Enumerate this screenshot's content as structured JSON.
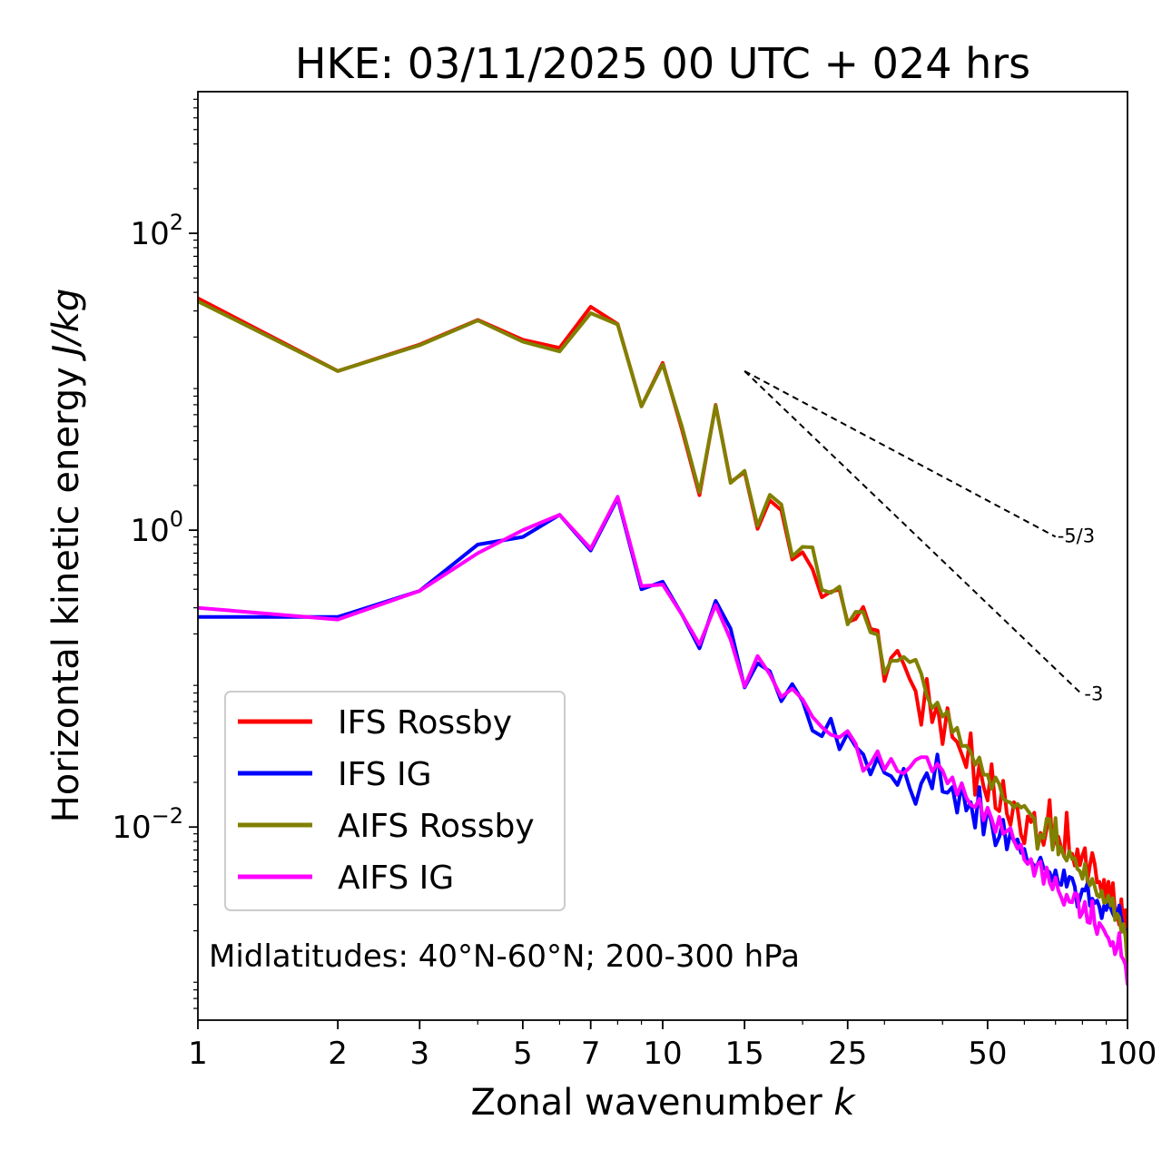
{
  "chart_data": {
    "type": "line",
    "title": "HKE: 03/11/2025 00 UTC + 024 hrs",
    "xlabel": "Zonal wavenumber",
    "xlabel_var": "k",
    "ylabel": "Horizontal kinetic energy",
    "ylabel_unit": "J/kg",
    "xscale": "log",
    "yscale": "log",
    "xlim": [
      1,
      100
    ],
    "ylim": [
      0.0005,
      900
    ],
    "xticks": [
      {
        "value": 1,
        "label": "1"
      },
      {
        "value": 2,
        "label": "2"
      },
      {
        "value": 3,
        "label": "3"
      },
      {
        "value": 5,
        "label": "5"
      },
      {
        "value": 7,
        "label": "7"
      },
      {
        "value": 10,
        "label": "10"
      },
      {
        "value": 15,
        "label": "15"
      },
      {
        "value": 25,
        "label": "25"
      },
      {
        "value": 50,
        "label": "50"
      },
      {
        "value": 100,
        "label": "100"
      }
    ],
    "yticks": [
      {
        "value": 100,
        "base": "10",
        "exp": "2"
      },
      {
        "value": 1,
        "base": "10",
        "exp": "0"
      },
      {
        "value": 0.01,
        "base": "10",
        "exp": "−2"
      }
    ],
    "annotation": "Midlatitudes: 40°N-60°N; 200-300 hPa",
    "legend_position": "lower-left",
    "series": [
      {
        "name": "IFS Rossby",
        "color": "#ff0000",
        "x_start": 1,
        "values": [
          36.5,
          11.8,
          17.8,
          26.1,
          19.2,
          16.9,
          32.0,
          24.5,
          6.83,
          13.4,
          4.77,
          1.72,
          6.98,
          2.11,
          2.46,
          1.02,
          1.59,
          1.36,
          0.634,
          0.71,
          0.547,
          0.353,
          0.385,
          0.398,
          0.24,
          0.252,
          0.304,
          0.216,
          0.211,
          0.0964,
          0.138,
          0.154,
          0.125,
          0.0993,
          0.0823,
          0.0488,
          0.0996,
          0.0508,
          0.0671,
          0.0362,
          0.0633,
          0.0403,
          0.0374,
          0.031,
          0.0253,
          0.0429,
          0.0165,
          0.0262,
          0.0188,
          0.0151,
          0.0265,
          0.0134,
          0.0128,
          0.0205,
          0.0123,
          0.0103,
          0.0147,
          0.0132,
          0.00885,
          0.00777,
          0.0118,
          0.0108,
          0.0125,
          0.00724,
          0.00913,
          0.00758,
          0.00978,
          0.0152,
          0.00718,
          0.00839,
          0.0086,
          0.00724,
          0.00638,
          0.0125,
          0.00664,
          0.00661,
          0.0055,
          0.00709,
          0.00554,
          0.00646,
          0.00722,
          0.00432,
          0.00553,
          0.00669,
          0.00564,
          0.00424,
          0.00428,
          0.00357,
          0.00441,
          0.00322,
          0.00428,
          0.00305,
          0.00419,
          0.0027,
          0.00262,
          0.0022,
          0.00326,
          0.00207,
          0.00276,
          0.00173
        ]
      },
      {
        "name": "IFS IG",
        "color": "#0000ff",
        "x_start": 1,
        "values": [
          0.26,
          0.26,
          0.39,
          0.8,
          0.9,
          1.27,
          0.73,
          1.64,
          0.4,
          0.45,
          0.27,
          0.16,
          0.334,
          0.217,
          0.0872,
          0.127,
          0.112,
          0.0704,
          0.0919,
          0.0706,
          0.0446,
          0.0409,
          0.0537,
          0.0334,
          0.0427,
          0.0349,
          0.0309,
          0.0226,
          0.0293,
          0.0232,
          0.022,
          0.0192,
          0.0247,
          0.0183,
          0.0143,
          0.0197,
          0.0231,
          0.0182,
          0.0308,
          0.0173,
          0.017,
          0.0186,
          0.0125,
          0.0197,
          0.0129,
          0.0147,
          0.0099,
          0.0186,
          0.0089,
          0.0134,
          0.0107,
          0.00753,
          0.00861,
          0.0112,
          0.00707,
          0.00917,
          0.00801,
          0.00826,
          0.00671,
          0.00712,
          0.00567,
          0.00591,
          0.00543,
          0.00559,
          0.00623,
          0.00528,
          0.00515,
          0.00495,
          0.00433,
          0.00511,
          0.00416,
          0.00407,
          0.00511,
          0.00396,
          0.00461,
          0.00452,
          0.00397,
          0.00291,
          0.00332,
          0.00381,
          0.00373,
          0.00417,
          0.00295,
          0.00329,
          0.00307,
          0.0032,
          0.0029,
          0.00243,
          0.00294,
          0.00276,
          0.00316,
          0.00284,
          0.00261,
          0.00244,
          0.00263,
          0.00296,
          0.00241,
          0.00211,
          0.00202,
          0.00159
        ]
      },
      {
        "name": "AIFS Rossby",
        "color": "#808000",
        "x_start": 1,
        "values": [
          34.8,
          11.8,
          17.6,
          25.9,
          18.6,
          16.0,
          29.0,
          24.3,
          6.83,
          13.1,
          4.98,
          1.8,
          6.92,
          2.08,
          2.51,
          1.07,
          1.73,
          1.49,
          0.664,
          0.772,
          0.766,
          0.396,
          0.378,
          0.416,
          0.232,
          0.282,
          0.281,
          0.205,
          0.198,
          0.108,
          0.132,
          0.132,
          0.14,
          0.129,
          0.134,
          0.108,
          0.0771,
          0.0633,
          0.0689,
          0.0554,
          0.06,
          0.0435,
          0.0466,
          0.0351,
          0.0353,
          0.032,
          0.0262,
          0.0294,
          0.0225,
          0.0225,
          0.0181,
          0.0216,
          0.0194,
          0.0155,
          0.0149,
          0.0146,
          0.0135,
          0.0143,
          0.0135,
          0.0139,
          0.0129,
          0.0121,
          0.0114,
          0.00713,
          0.00888,
          0.00841,
          0.0114,
          0.0113,
          0.00704,
          0.0115,
          0.00653,
          0.00736,
          0.00635,
          0.00593,
          0.0069,
          0.00608,
          0.00619,
          0.00523,
          0.00503,
          0.00447,
          0.00565,
          0.00442,
          0.00404,
          0.00448,
          0.00397,
          0.00346,
          0.00338,
          0.00373,
          0.00309,
          0.00312,
          0.00346,
          0.00296,
          0.00332,
          0.00236,
          0.0026,
          0.00246,
          0.00196,
          0.00222,
          0.00182,
          0.00116
        ]
      },
      {
        "name": "AIFS IG",
        "color": "#ff00ff",
        "x_start": 1,
        "values": [
          0.3,
          0.25,
          0.39,
          0.7,
          1.0,
          1.27,
          0.75,
          1.68,
          0.42,
          0.43,
          0.27,
          0.17,
          0.313,
          0.183,
          0.0883,
          0.142,
          0.107,
          0.0751,
          0.0855,
          0.0725,
          0.0553,
          0.0471,
          0.0419,
          0.0402,
          0.0443,
          0.0365,
          0.0239,
          0.0268,
          0.0324,
          0.0244,
          0.0288,
          0.0238,
          0.023,
          0.0252,
          0.0283,
          0.0296,
          0.0296,
          0.0237,
          0.0267,
          0.024,
          0.0197,
          0.0216,
          0.0165,
          0.0197,
          0.0158,
          0.0141,
          0.0136,
          0.0155,
          0.0111,
          0.0135,
          0.0114,
          0.00924,
          0.0117,
          0.00901,
          0.00938,
          0.00983,
          0.00803,
          0.00714,
          0.00761,
          0.00601,
          0.00563,
          0.00609,
          0.00469,
          0.00565,
          0.00585,
          0.00414,
          0.00534,
          0.00423,
          0.0038,
          0.00458,
          0.00374,
          0.00336,
          0.00299,
          0.0035,
          0.00313,
          0.00311,
          0.00358,
          0.00352,
          0.00247,
          0.00266,
          0.00313,
          0.00229,
          0.00226,
          0.00318,
          0.0022,
          0.0019,
          0.00226,
          0.00214,
          0.00202,
          0.00187,
          0.00178,
          0.00159,
          0.00168,
          0.00139,
          0.00154,
          0.00193,
          0.00135,
          0.00128,
          0.00118,
          0.000877
        ]
      }
    ],
    "reference_lines": [
      {
        "label": "-5/3",
        "slope": -1.6667,
        "x": [
          15,
          70
        ],
        "y": [
          11.8,
          0.903
        ]
      },
      {
        "label": "-3",
        "slope": -3,
        "x": [
          15,
          80
        ],
        "y": [
          11.8,
          0.0778
        ]
      }
    ]
  }
}
